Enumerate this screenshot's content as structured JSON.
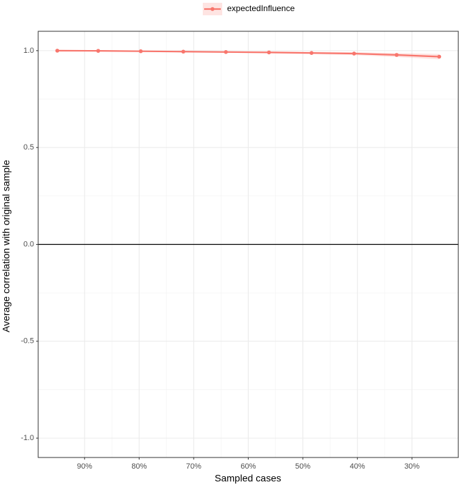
{
  "chart_data": {
    "type": "line",
    "xlabel": "Sampled cases",
    "ylabel": "Average correlation with original sample",
    "x": [
      95,
      87.5,
      79.7,
      71.9,
      64.1,
      56.2,
      48.4,
      40.6,
      32.8,
      25
    ],
    "series": [
      {
        "name": "expectedInfluence",
        "color": "#F8766D",
        "values": [
          1.0,
          0.999,
          0.997,
          0.995,
          0.993,
          0.991,
          0.988,
          0.985,
          0.978,
          0.969
        ],
        "lower": [
          0.999,
          0.998,
          0.995,
          0.992,
          0.989,
          0.986,
          0.982,
          0.977,
          0.967,
          0.955
        ],
        "upper": [
          1.0,
          1.0,
          0.999,
          0.998,
          0.997,
          0.996,
          0.994,
          0.992,
          0.988,
          0.983
        ]
      }
    ],
    "xlim": [
      98.5,
      21.5
    ],
    "xticks": [
      {
        "value": 90,
        "label": "90%"
      },
      {
        "value": 80,
        "label": "80%"
      },
      {
        "value": 70,
        "label": "70%"
      },
      {
        "value": 60,
        "label": "60%"
      },
      {
        "value": 50,
        "label": "50%"
      },
      {
        "value": 40,
        "label": "40%"
      },
      {
        "value": 30,
        "label": "30%"
      }
    ],
    "ylim": [
      -1.1,
      1.1
    ],
    "yticks": [
      {
        "value": -1,
        "label": "-1.0"
      },
      {
        "value": -0.5,
        "label": "-0.5"
      },
      {
        "value": 0,
        "label": "0.0"
      },
      {
        "value": 0.5,
        "label": "0.5"
      },
      {
        "value": 1,
        "label": "1.0"
      }
    ],
    "hline": 0,
    "grid": true,
    "legend": "top"
  }
}
